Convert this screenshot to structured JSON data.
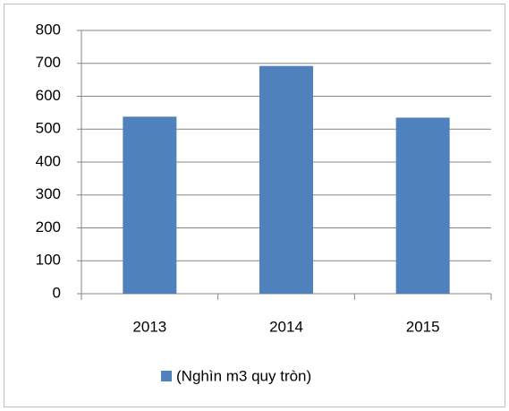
{
  "chart_data": {
    "type": "bar",
    "categories": [
      "2013",
      "2014",
      "2015"
    ],
    "series": [
      {
        "name": "(Nghìn m3 quy tròn)",
        "color": "#4f81bd",
        "values": [
          538,
          692,
          535
        ]
      }
    ],
    "ylim": [
      0,
      800
    ],
    "yticks": [
      0,
      100,
      200,
      300,
      400,
      500,
      600,
      700,
      800
    ],
    "grid": true,
    "legend": "bottom"
  }
}
